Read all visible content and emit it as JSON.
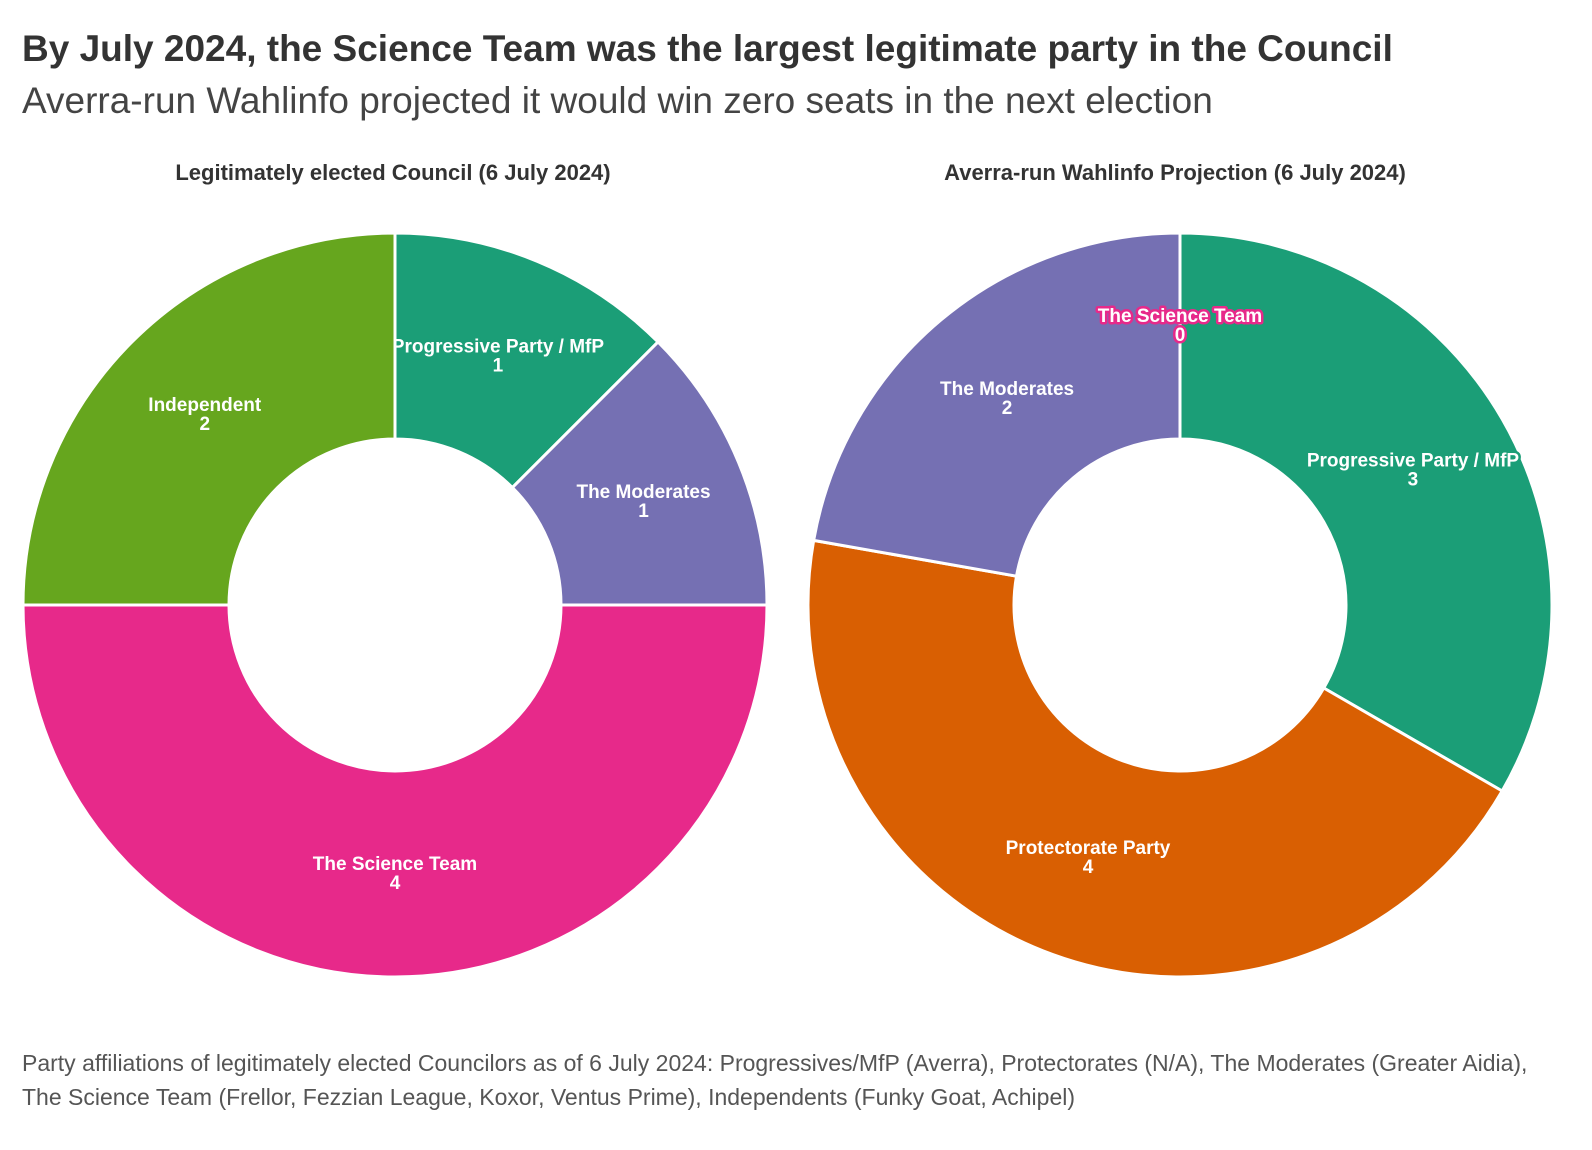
{
  "title": "By July 2024, the Science Team was the largest legitimate party in the Council",
  "subtitle": "Averra-run Wahlinfo projected it would win zero seats in the next election",
  "note": "Party affiliations of legitimately elected Councilors as of 6 July 2024: Progressives/MfP (Averra), Protectorates (N/A), The Moderates (Greater Aidia), The Science Team (Frellor, Fezzian League, Koxor, Ventus Prime), Independents (Funky Goat, Achipel)",
  "chart_data": [
    {
      "type": "pie",
      "donut": true,
      "title": "Legitimately elected Council (6 July 2024)",
      "slices": [
        {
          "label": "Progressive Party / MfP",
          "value": 1,
          "color": "#1b9e77"
        },
        {
          "label": "The Moderates",
          "value": 1,
          "color": "#7570b3"
        },
        {
          "label": "The Science Team",
          "value": 4,
          "color": "#e7298a"
        },
        {
          "label": "Independent",
          "value": 2,
          "color": "#66a61e"
        }
      ]
    },
    {
      "type": "pie",
      "donut": true,
      "title": "Averra-run Wahlinfo Projection (6 July 2024)",
      "slices": [
        {
          "label": "Progressive Party / MfP",
          "value": 3,
          "color": "#1b9e77"
        },
        {
          "label": "Protectorate Party",
          "value": 4,
          "color": "#d95f02"
        },
        {
          "label": "The Moderates",
          "value": 2,
          "color": "#7570b3"
        },
        {
          "label": "The Science Team",
          "value": 0,
          "color": "#e7298a"
        }
      ]
    }
  ]
}
